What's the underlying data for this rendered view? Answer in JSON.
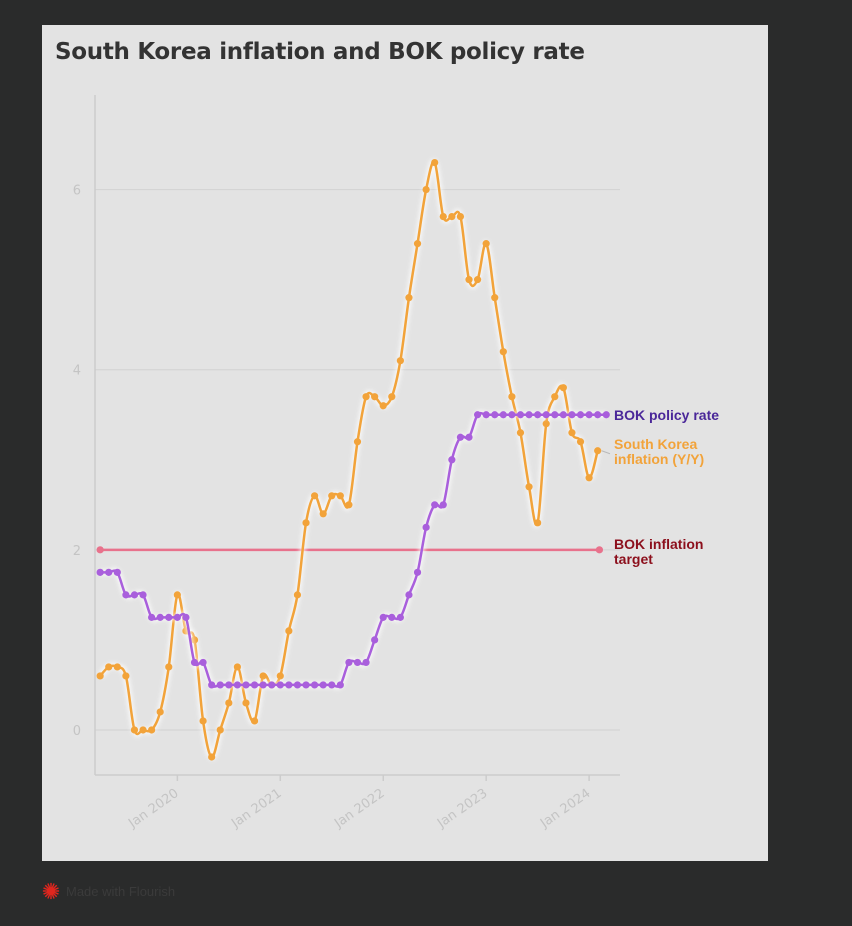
{
  "chart_data": {
    "type": "line",
    "title": "South Korea inflation and BOK policy rate",
    "xlabel": "",
    "ylabel": "",
    "ylim": [
      -0.5,
      7.05
    ],
    "xlim": [
      2019.2,
      2024.3
    ],
    "yticks": [
      0,
      2,
      4,
      6
    ],
    "ytick_labels": [
      "0",
      "2",
      "4",
      "6"
    ],
    "xticks": [
      2020,
      2021,
      2022,
      2023,
      2024
    ],
    "xtick_labels": [
      "Jan 2020",
      "Jan 2021",
      "Jan 2022",
      "Jan 2023",
      "Jan 2024"
    ],
    "grid": true,
    "legend": "direct-labels-right",
    "series": [
      {
        "name": "South Korea inflation (Y/Y)",
        "label_lines": [
          "South Korea",
          "inflation (Y/Y)"
        ],
        "color": "#f2a33a",
        "start": 2019.25,
        "step": 0.08333,
        "values": [
          0.6,
          0.7,
          0.7,
          0.6,
          0.0,
          0.0,
          0.0,
          0.2,
          0.7,
          1.5,
          1.1,
          1.0,
          0.1,
          -0.3,
          0.0,
          0.3,
          0.7,
          0.3,
          0.1,
          0.6,
          0.5,
          0.6,
          1.1,
          1.5,
          2.3,
          2.6,
          2.4,
          2.6,
          2.6,
          2.5,
          3.2,
          3.7,
          3.7,
          3.6,
          3.7,
          4.1,
          4.8,
          5.4,
          6.0,
          6.3,
          5.7,
          5.7,
          5.7,
          5.0,
          5.0,
          5.4,
          4.8,
          4.2,
          3.7,
          3.3,
          2.7,
          2.3,
          3.4,
          3.7,
          3.8,
          3.3,
          3.2,
          2.8,
          3.1
        ]
      },
      {
        "name": "BOK policy rate",
        "label_lines": [
          "BOK policy rate"
        ],
        "color": "#a95fdc",
        "label_color": "#4a2799",
        "start": 2019.25,
        "step": 0.08333,
        "values": [
          1.75,
          1.75,
          1.75,
          1.5,
          1.5,
          1.5,
          1.25,
          1.25,
          1.25,
          1.25,
          1.25,
          0.75,
          0.75,
          0.5,
          0.5,
          0.5,
          0.5,
          0.5,
          0.5,
          0.5,
          0.5,
          0.5,
          0.5,
          0.5,
          0.5,
          0.5,
          0.5,
          0.5,
          0.5,
          0.75,
          0.75,
          0.75,
          1.0,
          1.25,
          1.25,
          1.25,
          1.5,
          1.75,
          2.25,
          2.5,
          2.5,
          3.0,
          3.25,
          3.25,
          3.5,
          3.5,
          3.5,
          3.5,
          3.5,
          3.5,
          3.5,
          3.5,
          3.5,
          3.5,
          3.5,
          3.5,
          3.5,
          3.5,
          3.5,
          3.5
        ]
      },
      {
        "name": "BOK inflation target",
        "label_lines": [
          "BOK inflation",
          "target"
        ],
        "color": "#e8728c",
        "label_color": "#8c0f1c",
        "x": [
          2019.25,
          2024.1
        ],
        "values": [
          2,
          2
        ]
      }
    ]
  },
  "footer": {
    "text": "Made with Flourish",
    "icon": "flourish-burst-icon",
    "icon_color": "#e0261e"
  }
}
